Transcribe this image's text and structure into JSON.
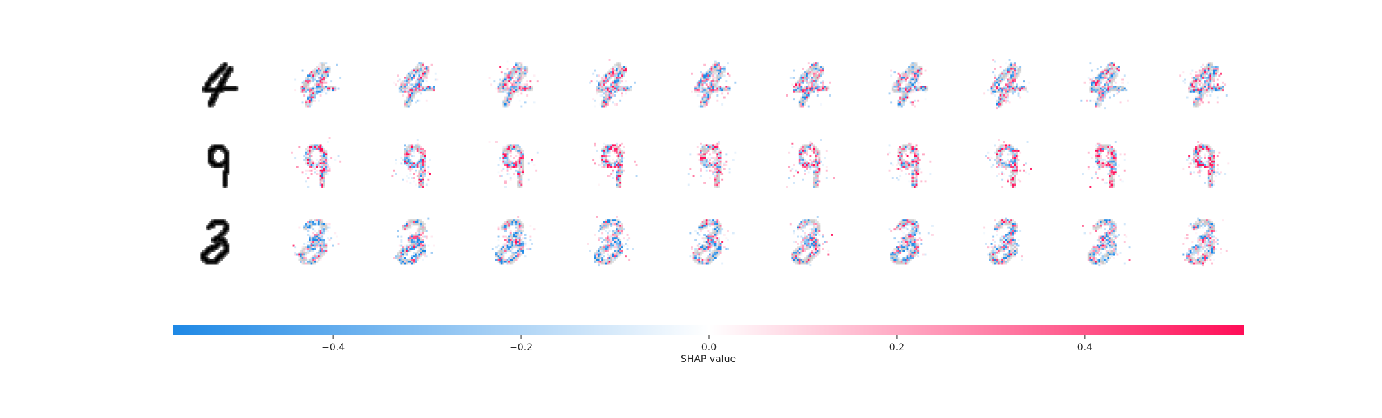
{
  "chart_data": {
    "type": "heatmap",
    "description_rows": [
      "4",
      "9",
      "3"
    ],
    "rows": [
      {
        "digit": "4",
        "explanation_count": 10
      },
      {
        "digit": "9",
        "explanation_count": 10
      },
      {
        "digit": "3",
        "explanation_count": 10
      }
    ],
    "colorbar": {
      "xlabel": "SHAP value",
      "range": [
        -0.57,
        0.57
      ],
      "ticks": [
        -0.4,
        -0.2,
        0.0,
        0.2,
        0.4
      ],
      "tick_labels": [
        "−0.4",
        "−0.2",
        "0.0",
        "0.2",
        "0.4"
      ],
      "color_negative": "#1e88e5",
      "color_zero": "#ffffff",
      "color_positive": "#ff0d57"
    }
  }
}
